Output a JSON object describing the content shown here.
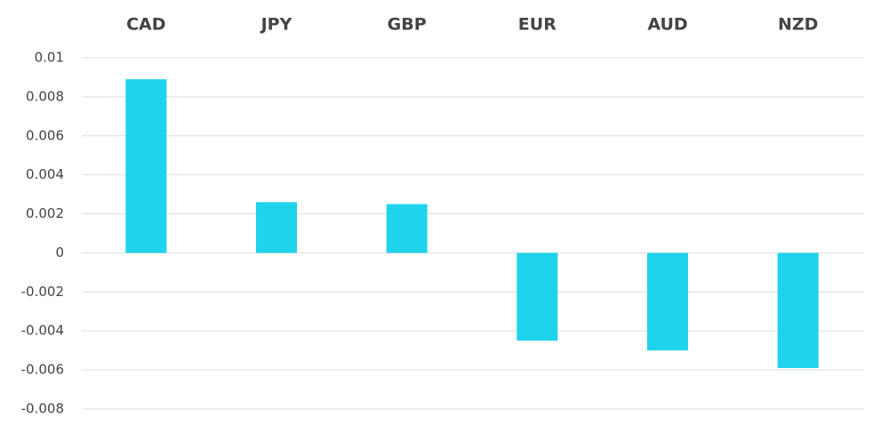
{
  "chart_data": {
    "type": "bar",
    "categories": [
      "CAD",
      "JPY",
      "GBP",
      "EUR",
      "AUD",
      "NZD"
    ],
    "values": [
      0.0089,
      0.0026,
      0.0025,
      -0.0045,
      -0.005,
      -0.0059
    ],
    "color": "#1fd3ec",
    "ylim": [
      -0.008,
      0.01
    ],
    "yticks": [
      0.01,
      0.008,
      0.006,
      0.004,
      0.002,
      0,
      -0.002,
      -0.004,
      -0.006,
      -0.008
    ],
    "grid": true
  }
}
